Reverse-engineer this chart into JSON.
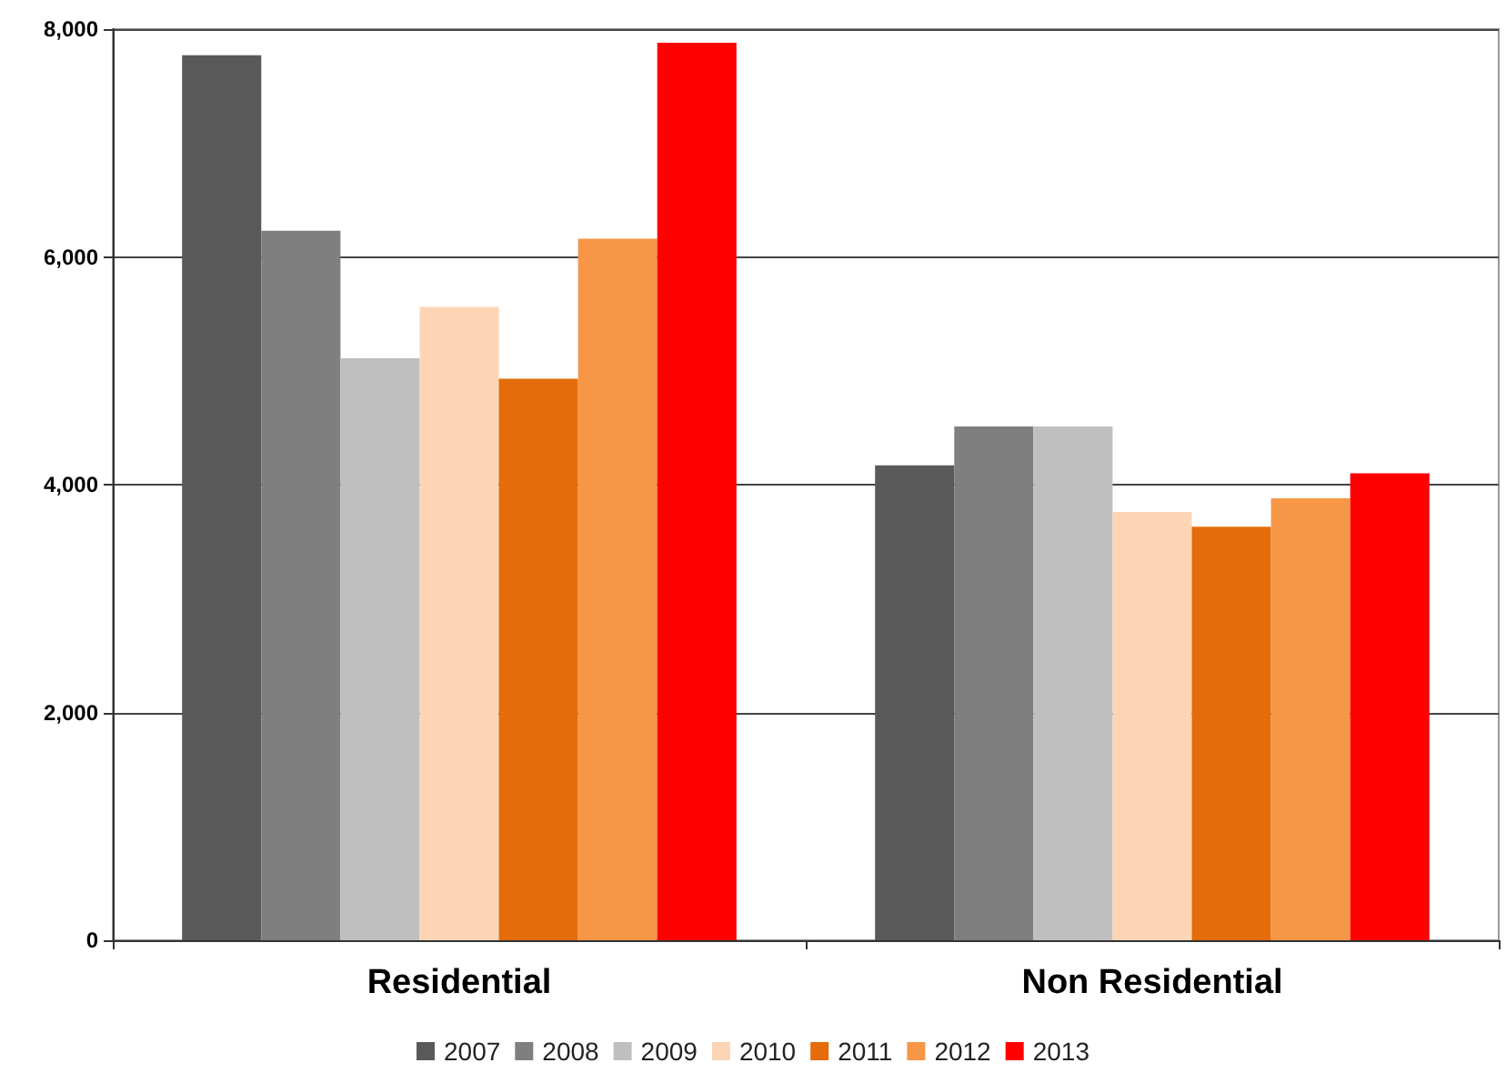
{
  "chart_data": {
    "type": "bar",
    "categories": [
      "Residential",
      "Non Residential"
    ],
    "series": [
      {
        "name": "2007",
        "color": "#595959",
        "values": [
          7770,
          4170
        ]
      },
      {
        "name": "2008",
        "color": "#7f7f7f",
        "values": [
          6230,
          4510
        ]
      },
      {
        "name": "2009",
        "color": "#bfbfbf",
        "values": [
          5110,
          4510
        ]
      },
      {
        "name": "2010",
        "color": "#fcd5b5",
        "values": [
          5560,
          3760
        ]
      },
      {
        "name": "2011",
        "color": "#e46c0a",
        "values": [
          4930,
          3630
        ]
      },
      {
        "name": "2012",
        "color": "#f79646",
        "values": [
          6160,
          3880
        ]
      },
      {
        "name": "2013",
        "color": "#ff0000",
        "values": [
          7880,
          4100
        ]
      }
    ],
    "ylim": [
      0,
      8000
    ],
    "yticks": [
      {
        "value": 0,
        "label": "0"
      },
      {
        "value": 2000,
        "label": "2,000"
      },
      {
        "value": 4000,
        "label": "4,000"
      },
      {
        "value": 6000,
        "label": "6,000"
      },
      {
        "value": 8000,
        "label": "8,000"
      }
    ],
    "grid": "y",
    "legend": "bottom"
  }
}
